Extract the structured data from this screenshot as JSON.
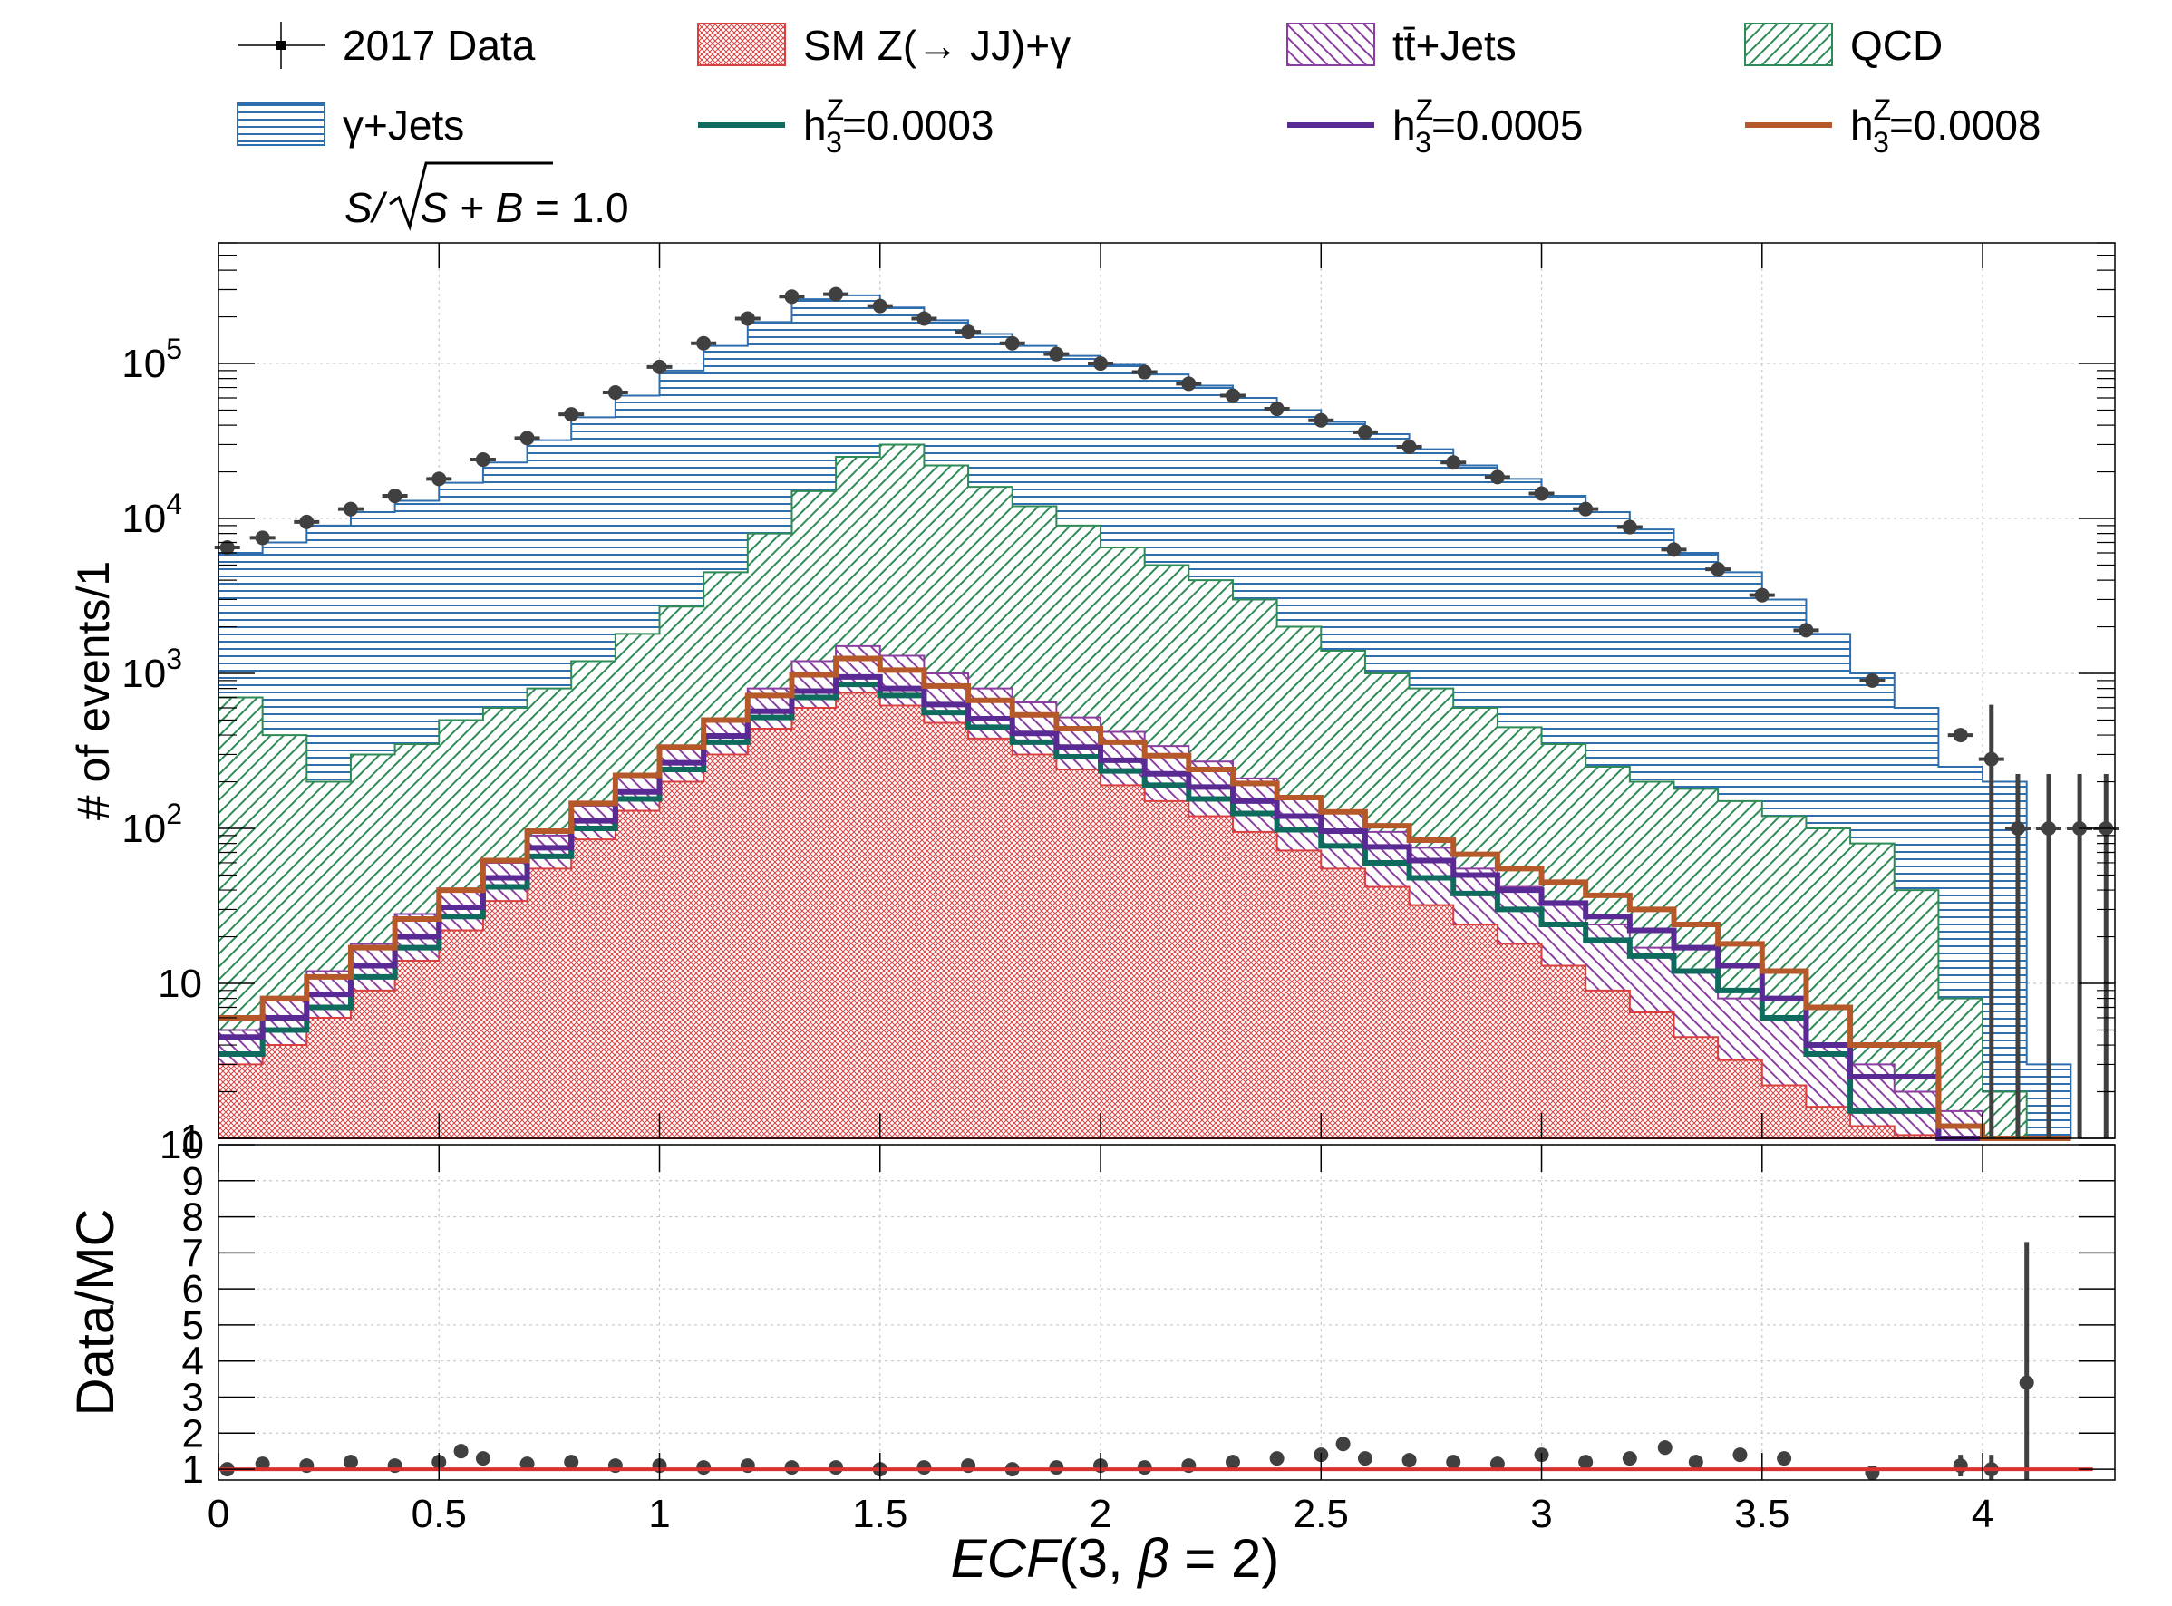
{
  "chart_data": [
    {
      "panel": "main",
      "type": "bar",
      "ylabel": "# of events/1",
      "scale": "log",
      "xlim": [
        0,
        4.3
      ],
      "ylim": [
        1,
        600000
      ],
      "x_ticks": [
        0,
        0.5,
        1,
        1.5,
        2,
        2.5,
        3,
        3.5,
        4
      ],
      "y_ticks": [
        {
          "value": 1,
          "label": "1"
        },
        {
          "value": 10,
          "label": "10"
        },
        {
          "value": 100,
          "label": "10",
          "sup": "2"
        },
        {
          "value": 1000,
          "label": "10",
          "sup": "3"
        },
        {
          "value": 10000,
          "label": "10",
          "sup": "4"
        },
        {
          "value": 100000,
          "label": "10",
          "sup": "5"
        }
      ],
      "grid": true,
      "legend_position": "top, above plot",
      "annotation": {
        "prefix": "S/",
        "radicand": "S + B",
        "value": " = 1.0"
      },
      "legend": [
        {
          "label": "2017 Data",
          "style": "marker",
          "color": "#404040"
        },
        {
          "label": "SM Z(→ JJ)+γ",
          "style": "hatch",
          "color": "#d94040"
        },
        {
          "label": "tt̄+Jets",
          "style": "hatch",
          "color": "#8a3fa0"
        },
        {
          "label": "QCD",
          "style": "hatch",
          "color": "#2e8b57"
        },
        {
          "label": "γ+Jets",
          "style": "hatch",
          "color": "#2f6ead"
        },
        {
          "label": "h",
          "sub": "3",
          "sup": "Z",
          "value": "=0.0003",
          "style": "line",
          "color": "#0f6b5e"
        },
        {
          "label": "h",
          "sub": "3",
          "sup": "Z",
          "value": "=0.0005",
          "style": "line",
          "color": "#5a2a94"
        },
        {
          "label": "h",
          "sub": "3",
          "sup": "Z",
          "value": "=0.0008",
          "style": "line",
          "color": "#b5592a"
        }
      ],
      "series": [
        {
          "name": "γ+Jets",
          "kind": "stacked-total",
          "color": "#2f6ead",
          "x": [
            0,
            0.1,
            0.2,
            0.3,
            0.4,
            0.5,
            0.6,
            0.7,
            0.8,
            0.9,
            1.0,
            1.1,
            1.2,
            1.3,
            1.4,
            1.5,
            1.6,
            1.7,
            1.8,
            1.9,
            2.0,
            2.1,
            2.2,
            2.3,
            2.4,
            2.5,
            2.6,
            2.7,
            2.8,
            2.9,
            3.0,
            3.1,
            3.2,
            3.3,
            3.4,
            3.5,
            3.6,
            3.7,
            3.8,
            3.9,
            4.0,
            4.1
          ],
          "y": [
            6000,
            7000,
            9000,
            11000,
            13000,
            17000,
            23000,
            32000,
            45000,
            62000,
            90000,
            130000,
            185000,
            260000,
            275000,
            230000,
            190000,
            155000,
            130000,
            112000,
            98000,
            85000,
            72000,
            60000,
            50000,
            42000,
            35000,
            28000,
            22000,
            18000,
            14000,
            11000,
            8500,
            6000,
            4500,
            3000,
            1800,
            1000,
            600,
            250,
            200,
            3
          ]
        },
        {
          "name": "QCD",
          "kind": "hist",
          "color": "#2e8b57",
          "x": [
            0,
            0.1,
            0.2,
            0.3,
            0.4,
            0.5,
            0.6,
            0.7,
            0.8,
            0.9,
            1.0,
            1.1,
            1.2,
            1.3,
            1.4,
            1.5,
            1.6,
            1.7,
            1.8,
            1.9,
            2.0,
            2.1,
            2.2,
            2.3,
            2.4,
            2.5,
            2.6,
            2.7,
            2.8,
            2.9,
            3.0,
            3.1,
            3.2,
            3.3,
            3.4,
            3.5,
            3.6,
            3.7,
            3.8,
            3.9,
            4.0,
            4.1
          ],
          "y": [
            700,
            400,
            200,
            300,
            350,
            500,
            600,
            800,
            1200,
            1800,
            2700,
            4500,
            8000,
            15000,
            25000,
            30000,
            22000,
            16000,
            12000,
            9000,
            6500,
            5000,
            4000,
            3000,
            2000,
            1400,
            1000,
            800,
            600,
            450,
            350,
            250,
            200,
            180,
            150,
            120,
            100,
            80,
            40,
            8,
            2,
            1
          ]
        },
        {
          "name": "tt̄+Jets",
          "kind": "hist",
          "color": "#8a3fa0",
          "x": [
            0,
            0.1,
            0.2,
            0.3,
            0.4,
            0.5,
            0.6,
            0.7,
            0.8,
            0.9,
            1.0,
            1.1,
            1.2,
            1.3,
            1.4,
            1.5,
            1.6,
            1.7,
            1.8,
            1.9,
            2.0,
            2.1,
            2.2,
            2.3,
            2.4,
            2.5,
            2.6,
            2.7,
            2.8,
            2.9,
            3.0,
            3.1,
            3.2,
            3.3,
            3.4,
            3.5,
            3.6,
            3.7,
            3.8,
            3.9,
            4.0,
            4.1
          ],
          "y": [
            5,
            8,
            12,
            18,
            28,
            40,
            60,
            90,
            140,
            220,
            340,
            500,
            800,
            1200,
            1500,
            1300,
            1000,
            800,
            650,
            520,
            420,
            340,
            270,
            210,
            160,
            125,
            95,
            75,
            55,
            42,
            32,
            24,
            17,
            12,
            8,
            6,
            4,
            3,
            2,
            1.5,
            1,
            1
          ]
        },
        {
          "name": "SM Z(→ JJ)+γ",
          "kind": "hist",
          "color": "#d94040",
          "x": [
            0,
            0.1,
            0.2,
            0.3,
            0.4,
            0.5,
            0.6,
            0.7,
            0.8,
            0.9,
            1.0,
            1.1,
            1.2,
            1.3,
            1.4,
            1.5,
            1.6,
            1.7,
            1.8,
            1.9,
            2.0,
            2.1,
            2.2,
            2.3,
            2.4,
            2.5,
            2.6,
            2.7,
            2.8,
            2.9,
            3.0,
            3.1,
            3.2,
            3.3,
            3.4,
            3.5,
            3.6,
            3.7,
            3.8,
            3.9,
            4.0,
            4.1
          ],
          "y": [
            3,
            4,
            6,
            9,
            14,
            22,
            34,
            55,
            85,
            130,
            200,
            300,
            440,
            600,
            750,
            620,
            480,
            380,
            300,
            240,
            190,
            150,
            120,
            95,
            72,
            55,
            42,
            32,
            24,
            18,
            13,
            9,
            6.5,
            4.5,
            3.2,
            2.2,
            1.6,
            1.2,
            1.05,
            1,
            1,
            1
          ]
        },
        {
          "name": "h3Z=0.0003",
          "kind": "line",
          "color": "#0f6b5e",
          "x": [
            0,
            0.1,
            0.2,
            0.3,
            0.4,
            0.5,
            0.6,
            0.7,
            0.8,
            0.9,
            1.0,
            1.1,
            1.2,
            1.3,
            1.4,
            1.5,
            1.6,
            1.7,
            1.8,
            1.9,
            2.0,
            2.1,
            2.2,
            2.3,
            2.4,
            2.5,
            2.6,
            2.7,
            2.8,
            2.9,
            3.0,
            3.1,
            3.2,
            3.3,
            3.4,
            3.5,
            3.6,
            3.7,
            3.8,
            3.9,
            4.0,
            4.1
          ],
          "y": [
            3.5,
            5,
            7,
            11,
            17,
            27,
            42,
            66,
            100,
            155,
            240,
            360,
            520,
            700,
            850,
            720,
            560,
            450,
            360,
            290,
            235,
            190,
            155,
            125,
            98,
            77,
            60,
            48,
            38,
            30,
            24,
            19,
            15,
            12,
            9,
            6,
            3.5,
            1.5,
            1.5,
            1,
            1,
            1
          ]
        },
        {
          "name": "h3Z=0.0005",
          "kind": "line",
          "color": "#5a2a94",
          "x": [
            0,
            0.1,
            0.2,
            0.3,
            0.4,
            0.5,
            0.6,
            0.7,
            0.8,
            0.9,
            1.0,
            1.1,
            1.2,
            1.3,
            1.4,
            1.5,
            1.6,
            1.7,
            1.8,
            1.9,
            2.0,
            2.1,
            2.2,
            2.3,
            2.4,
            2.5,
            2.6,
            2.7,
            2.8,
            2.9,
            3.0,
            3.1,
            3.2,
            3.3,
            3.4,
            3.5,
            3.6,
            3.7,
            3.8,
            3.9,
            4.0,
            4.1
          ],
          "y": [
            4.5,
            6,
            8.5,
            13,
            20,
            31,
            48,
            75,
            112,
            172,
            265,
            395,
            570,
            770,
            950,
            800,
            630,
            510,
            410,
            335,
            275,
            225,
            185,
            150,
            120,
            96,
            76,
            62,
            50,
            40,
            33,
            27,
            22,
            17,
            13,
            8,
            4,
            2.5,
            2.5,
            1,
            1,
            1
          ]
        },
        {
          "name": "h3Z=0.0008",
          "kind": "line",
          "color": "#b5592a",
          "x": [
            0,
            0.1,
            0.2,
            0.3,
            0.4,
            0.5,
            0.6,
            0.7,
            0.8,
            0.9,
            1.0,
            1.1,
            1.2,
            1.3,
            1.4,
            1.5,
            1.6,
            1.7,
            1.8,
            1.9,
            2.0,
            2.1,
            2.2,
            2.3,
            2.4,
            2.5,
            2.6,
            2.7,
            2.8,
            2.9,
            3.0,
            3.1,
            3.2,
            3.3,
            3.4,
            3.5,
            3.6,
            3.7,
            3.8,
            3.9,
            4.0,
            4.1
          ],
          "y": [
            6,
            8,
            11,
            17,
            26,
            40,
            62,
            96,
            145,
            220,
            335,
            500,
            720,
            980,
            1250,
            1050,
            830,
            670,
            540,
            440,
            360,
            295,
            240,
            195,
            158,
            128,
            104,
            84,
            68,
            55,
            45,
            37,
            30,
            24,
            18,
            12,
            7,
            4,
            4,
            1.2,
            1,
            1
          ]
        },
        {
          "name": "2017 Data",
          "kind": "points",
          "color": "#404040",
          "x": [
            0.02,
            0.1,
            0.2,
            0.3,
            0.4,
            0.5,
            0.6,
            0.7,
            0.8,
            0.9,
            1.0,
            1.1,
            1.2,
            1.3,
            1.4,
            1.5,
            1.6,
            1.7,
            1.8,
            1.9,
            2.0,
            2.1,
            2.2,
            2.3,
            2.4,
            2.5,
            2.6,
            2.7,
            2.8,
            2.9,
            3.0,
            3.1,
            3.2,
            3.3,
            3.4,
            3.5,
            3.6,
            3.75,
            3.95,
            4.02,
            4.08,
            4.15,
            4.22,
            4.28
          ],
          "y": [
            6500,
            7500,
            9500,
            11500,
            14000,
            18000,
            24000,
            33000,
            47000,
            65000,
            95000,
            135000,
            195000,
            270000,
            280000,
            235000,
            195000,
            160000,
            135000,
            115000,
            100000,
            88000,
            74000,
            62000,
            51000,
            43000,
            36000,
            29000,
            23000,
            18500,
            14500,
            11500,
            8800,
            6300,
            4700,
            3200,
            1900,
            900,
            400,
            280,
            100,
            100,
            100,
            100
          ]
        }
      ]
    },
    {
      "panel": "ratio",
      "type": "scatter",
      "xlabel_parts": {
        "func": "ECF",
        "args": "(3, ",
        "beta": "β",
        "rest": " = 2)"
      },
      "ylabel": "Data/MC",
      "xlim": [
        0,
        4.3
      ],
      "ylim": [
        0.7,
        10
      ],
      "x_ticks": [
        0,
        0.5,
        1,
        1.5,
        2,
        2.5,
        3,
        3.5,
        4
      ],
      "x_tick_labels": [
        "0",
        "0.5",
        "1",
        "1.5",
        "2",
        "2.5",
        "3",
        "3.5",
        "4"
      ],
      "y_ticks": [
        1,
        2,
        3,
        4,
        5,
        6,
        7,
        8,
        9,
        10
      ],
      "y_tick_labels": [
        "1",
        "2",
        "3",
        "4",
        "5",
        "6",
        "7",
        "8",
        "9",
        "10"
      ],
      "reference_line": {
        "y": 1,
        "color": "#d93030"
      },
      "points": {
        "x": [
          0.02,
          0.1,
          0.2,
          0.3,
          0.4,
          0.5,
          0.55,
          0.6,
          0.7,
          0.8,
          0.9,
          1.0,
          1.1,
          1.2,
          1.3,
          1.4,
          1.5,
          1.6,
          1.7,
          1.8,
          1.9,
          2.0,
          2.1,
          2.2,
          2.3,
          2.4,
          2.5,
          2.55,
          2.6,
          2.7,
          2.8,
          2.9,
          3.0,
          3.1,
          3.2,
          3.28,
          3.35,
          3.45,
          3.55,
          3.75,
          3.95,
          4.02,
          4.1
        ],
        "y": [
          1.0,
          1.15,
          1.1,
          1.2,
          1.1,
          1.2,
          1.5,
          1.3,
          1.15,
          1.2,
          1.1,
          1.1,
          1.05,
          1.1,
          1.05,
          1.05,
          1.0,
          1.05,
          1.1,
          1.0,
          1.05,
          1.1,
          1.05,
          1.1,
          1.2,
          1.3,
          1.4,
          1.7,
          1.3,
          1.25,
          1.2,
          1.15,
          1.4,
          1.2,
          1.3,
          1.6,
          1.2,
          1.4,
          1.3,
          0.9,
          1.1,
          1.0,
          3.4
        ],
        "err": [
          0.02,
          0.02,
          0.02,
          0.02,
          0.02,
          0.02,
          0.02,
          0.02,
          0.02,
          0.02,
          0.02,
          0.02,
          0.02,
          0.02,
          0.02,
          0.02,
          0.02,
          0.02,
          0.02,
          0.02,
          0.02,
          0.02,
          0.02,
          0.02,
          0.02,
          0.03,
          0.03,
          0.05,
          0.03,
          0.03,
          0.04,
          0.04,
          0.05,
          0.06,
          0.08,
          0.2,
          0.1,
          0.1,
          0.15,
          0.1,
          0.3,
          0.4,
          3.9
        ]
      }
    }
  ]
}
